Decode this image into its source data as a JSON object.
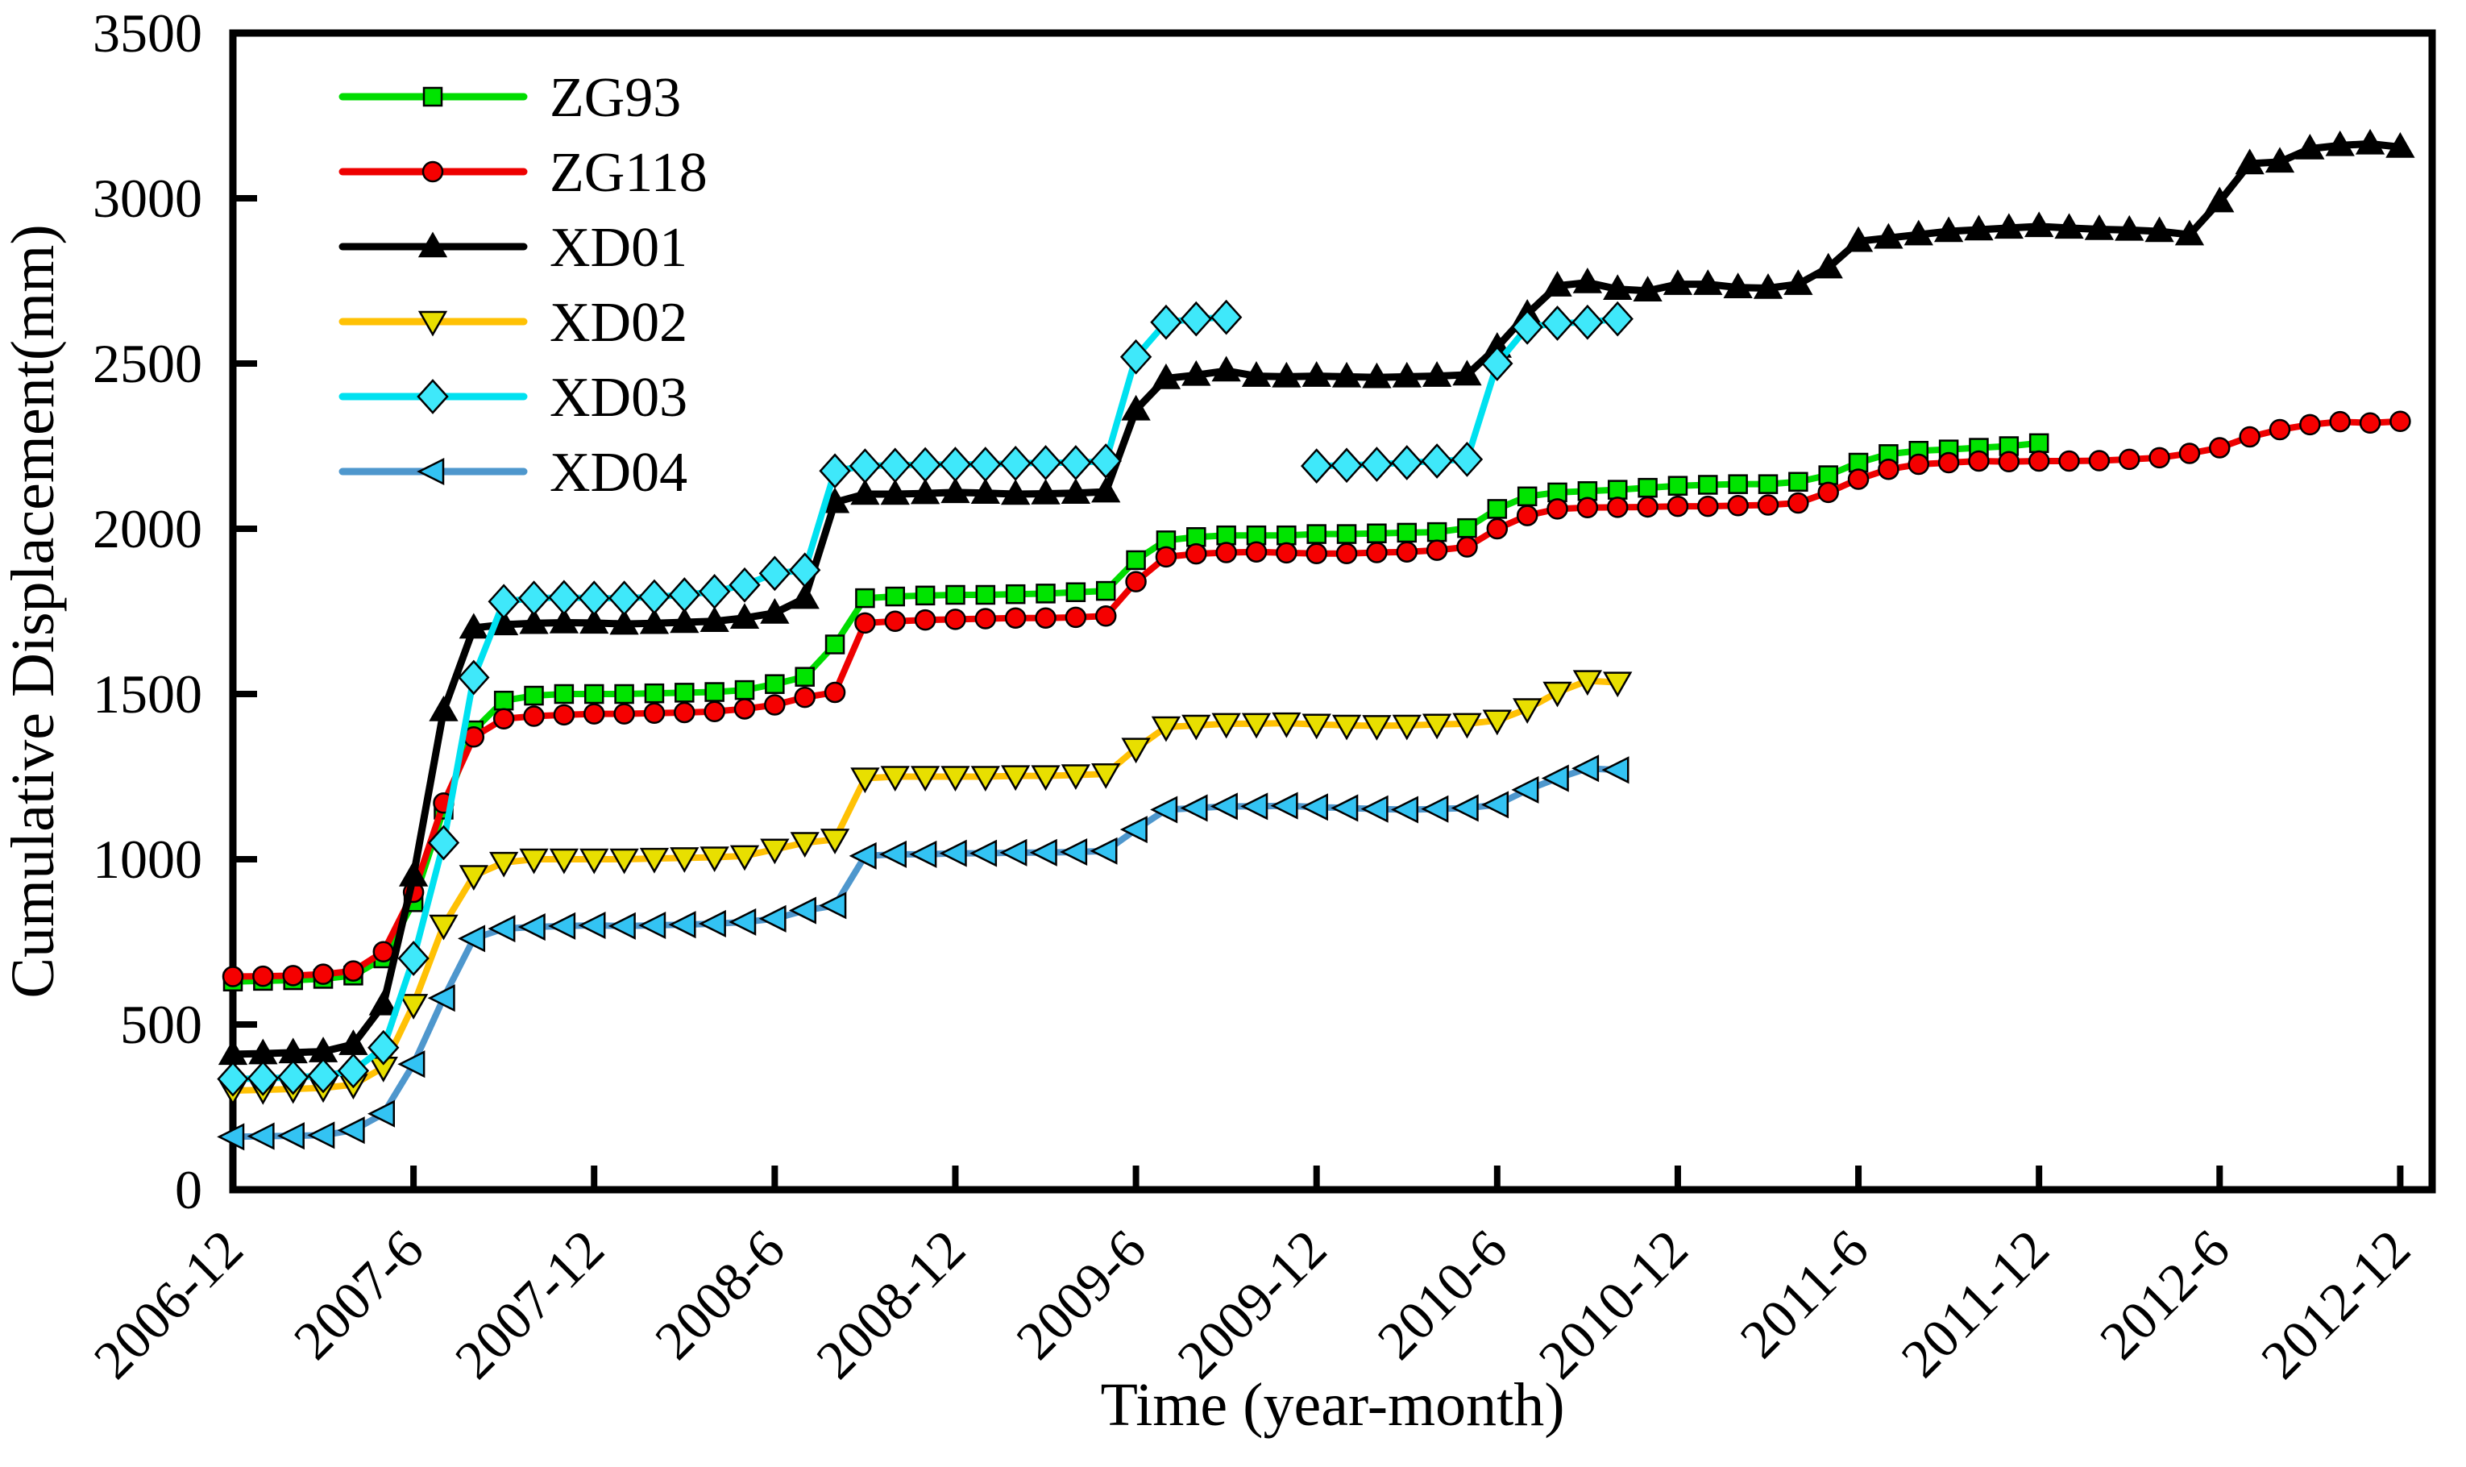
{
  "chart_data": {
    "type": "line",
    "title": "",
    "xlabel": "Time (year-month)",
    "ylabel": "Cumulative Displacement(mm)",
    "ylim": [
      0,
      3500
    ],
    "y_ticks": [
      0,
      500,
      1000,
      1500,
      2000,
      2500,
      3000,
      3500
    ],
    "x_tick_labels": [
      "2006-12",
      "2007-6",
      "2007-12",
      "2008-6",
      "2008-12",
      "2009-6",
      "2009-12",
      "2010-6",
      "2010-12",
      "2011-6",
      "2011-12",
      "2012-6",
      "2012-12"
    ],
    "x_tick_month_index": [
      0,
      6,
      12,
      18,
      24,
      30,
      36,
      42,
      48,
      54,
      60,
      66,
      72
    ],
    "x_months_span": 73.06,
    "grid": false,
    "legend_position": "upper-left",
    "axis_color": "#000000",
    "background_color": "#ffffff",
    "series": [
      {
        "name": "ZG93",
        "color": "#00DC00",
        "marker": "square",
        "marker_fill": "#00E400",
        "start_month": "2006-12",
        "end_month": "2011-12",
        "values": [
          630,
          632,
          634,
          638,
          648,
          700,
          870,
          1150,
          1390,
          1480,
          1495,
          1500,
          1500,
          1500,
          1502,
          1504,
          1506,
          1512,
          1530,
          1552,
          1650,
          1790,
          1795,
          1798,
          1800,
          1800,
          1802,
          1804,
          1808,
          1812,
          1905,
          1965,
          1975,
          1980,
          1980,
          1980,
          1984,
          1984,
          1986,
          1988,
          1990,
          2002,
          2060,
          2098,
          2110,
          2114,
          2118,
          2124,
          2130,
          2133,
          2135,
          2135,
          2142,
          2162,
          2200,
          2226,
          2236,
          2240,
          2245,
          2250,
          2259
        ]
      },
      {
        "name": "ZG118",
        "color": "#EE0000",
        "marker": "circle",
        "marker_fill": "#F50000",
        "start_month": "2006-12",
        "end_month": "2012-12",
        "values": [
          645,
          646,
          648,
          652,
          662,
          720,
          900,
          1170,
          1370,
          1425,
          1433,
          1437,
          1440,
          1440,
          1442,
          1444,
          1447,
          1455,
          1467,
          1490,
          1505,
          1715,
          1720,
          1724,
          1726,
          1728,
          1730,
          1730,
          1732,
          1736,
          1840,
          1915,
          1924,
          1928,
          1930,
          1927,
          1925,
          1925,
          1928,
          1930,
          1935,
          1945,
          2000,
          2040,
          2060,
          2064,
          2065,
          2066,
          2068,
          2068,
          2070,
          2072,
          2078,
          2110,
          2150,
          2180,
          2195,
          2200,
          2205,
          2203,
          2205,
          2205,
          2206,
          2210,
          2215,
          2228,
          2245,
          2278,
          2300,
          2315,
          2324,
          2320,
          2325
        ]
      },
      {
        "name": "XD01",
        "color": "#000000",
        "marker": "triangle-up",
        "marker_fill": "#000000",
        "start_month": "2006-12",
        "end_month": "2012-12",
        "values": [
          410,
          412,
          415,
          418,
          440,
          560,
          950,
          1450,
          1700,
          1710,
          1714,
          1716,
          1715,
          1712,
          1714,
          1717,
          1720,
          1730,
          1745,
          1790,
          2080,
          2105,
          2105,
          2107,
          2110,
          2108,
          2105,
          2106,
          2108,
          2112,
          2360,
          2455,
          2465,
          2478,
          2462,
          2460,
          2462,
          2460,
          2458,
          2460,
          2462,
          2466,
          2550,
          2650,
          2735,
          2745,
          2725,
          2720,
          2740,
          2740,
          2730,
          2728,
          2740,
          2790,
          2870,
          2880,
          2890,
          2900,
          2905,
          2910,
          2915,
          2910,
          2906,
          2904,
          2900,
          2890,
          2990,
          3105,
          3110,
          3150,
          3160,
          3165,
          3155
        ]
      },
      {
        "name": "XD02",
        "color": "#FFC104",
        "marker": "triangle-down",
        "marker_fill": "#E8DF00",
        "start_month": "2006-12",
        "end_month": "2010-10",
        "values": [
          300,
          302,
          305,
          308,
          318,
          370,
          560,
          800,
          950,
          990,
          1000,
          1000,
          1000,
          1000,
          1002,
          1004,
          1006,
          1010,
          1030,
          1050,
          1060,
          1245,
          1250,
          1250,
          1250,
          1250,
          1252,
          1252,
          1255,
          1258,
          1335,
          1400,
          1405,
          1410,
          1410,
          1412,
          1408,
          1405,
          1404,
          1405,
          1408,
          1410,
          1420,
          1455,
          1505,
          1540,
          1535
        ]
      },
      {
        "name": "XD03",
        "color": "#00E1F0",
        "marker": "diamond",
        "marker_fill": "#3FE8FA",
        "start_month": "2006-12",
        "end_month": "2010-10",
        "data_gap_months": [
          "2009-10",
          "2009-11"
        ],
        "values": [
          335,
          337,
          340,
          345,
          360,
          430,
          700,
          1050,
          1550,
          1780,
          1790,
          1792,
          1790,
          1790,
          1794,
          1800,
          1810,
          1830,
          1865,
          1875,
          2175,
          2190,
          2192,
          2194,
          2195,
          2195,
          2198,
          2200,
          2200,
          2205,
          2520,
          2625,
          2635,
          2640,
          null,
          null,
          2190,
          2192,
          2195,
          2200,
          2205,
          2210,
          2500,
          2610,
          2622,
          2625,
          2635
        ]
      },
      {
        "name": "XD04",
        "color": "#4E97CD",
        "marker": "triangle-left",
        "marker_fill": "#33C3F3",
        "start_month": "2006-12",
        "end_month": "2010-10",
        "values": [
          160,
          162,
          163,
          165,
          180,
          230,
          380,
          580,
          760,
          790,
          795,
          798,
          800,
          798,
          800,
          802,
          805,
          810,
          820,
          845,
          860,
          1010,
          1015,
          1015,
          1018,
          1018,
          1020,
          1020,
          1022,
          1025,
          1090,
          1150,
          1155,
          1160,
          1160,
          1162,
          1158,
          1155,
          1152,
          1150,
          1152,
          1155,
          1165,
          1210,
          1245,
          1275,
          1270
        ]
      }
    ]
  }
}
